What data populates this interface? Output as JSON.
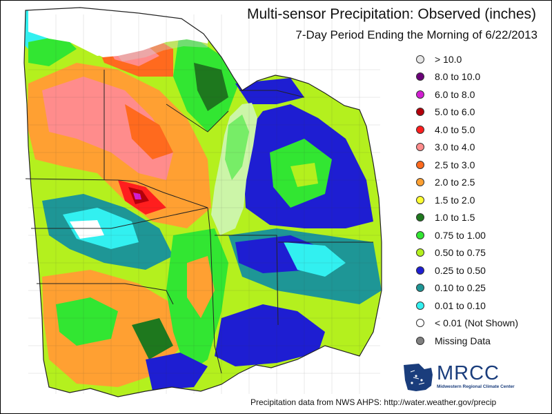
{
  "title": "Multi-sensor Precipitation:  Observed (inches)",
  "subtitle": "7-Day Period Ending the Morning of 6/22/2013",
  "legend": [
    {
      "label": "> 10.0",
      "color": "#e6e6e6"
    },
    {
      "label": "8.0 to 10.0",
      "color": "#6a0078"
    },
    {
      "label": "6.0 to 8.0",
      "color": "#d21ed2"
    },
    {
      "label": "5.0 to 6.0",
      "color": "#b4000a"
    },
    {
      "label": "4.0 to 5.0",
      "color": "#ff1e1e"
    },
    {
      "label": "3.0 to 4.0",
      "color": "#ff8c8c"
    },
    {
      "label": "2.5 to 3.0",
      "color": "#ff6a1e"
    },
    {
      "label": "2.0 to 2.5",
      "color": "#ffa032"
    },
    {
      "label": "1.5 to 2.0",
      "color": "#ffff32"
    },
    {
      "label": "1.0 to 1.5",
      "color": "#1e781e"
    },
    {
      "label": "0.75 to 1.00",
      "color": "#32e632"
    },
    {
      "label": "0.50 to 0.75",
      "color": "#b4f01e"
    },
    {
      "label": "0.25 to 0.50",
      "color": "#1e1ed2"
    },
    {
      "label": "0.10 to 0.25",
      "color": "#1e9696"
    },
    {
      "label": "0.01 to 0.10",
      "color": "#32f0f0"
    },
    {
      "label": "< 0.01 (Not Shown)",
      "color": "#ffffff"
    },
    {
      "label": "Missing Data",
      "color": "#808080"
    }
  ],
  "logo": {
    "name": "MRCC",
    "subtitle": "Midwestern Regional Climate Center"
  },
  "footer": "Precipitation data from NWS AHPS:  http://water.weather.gov/precip"
}
